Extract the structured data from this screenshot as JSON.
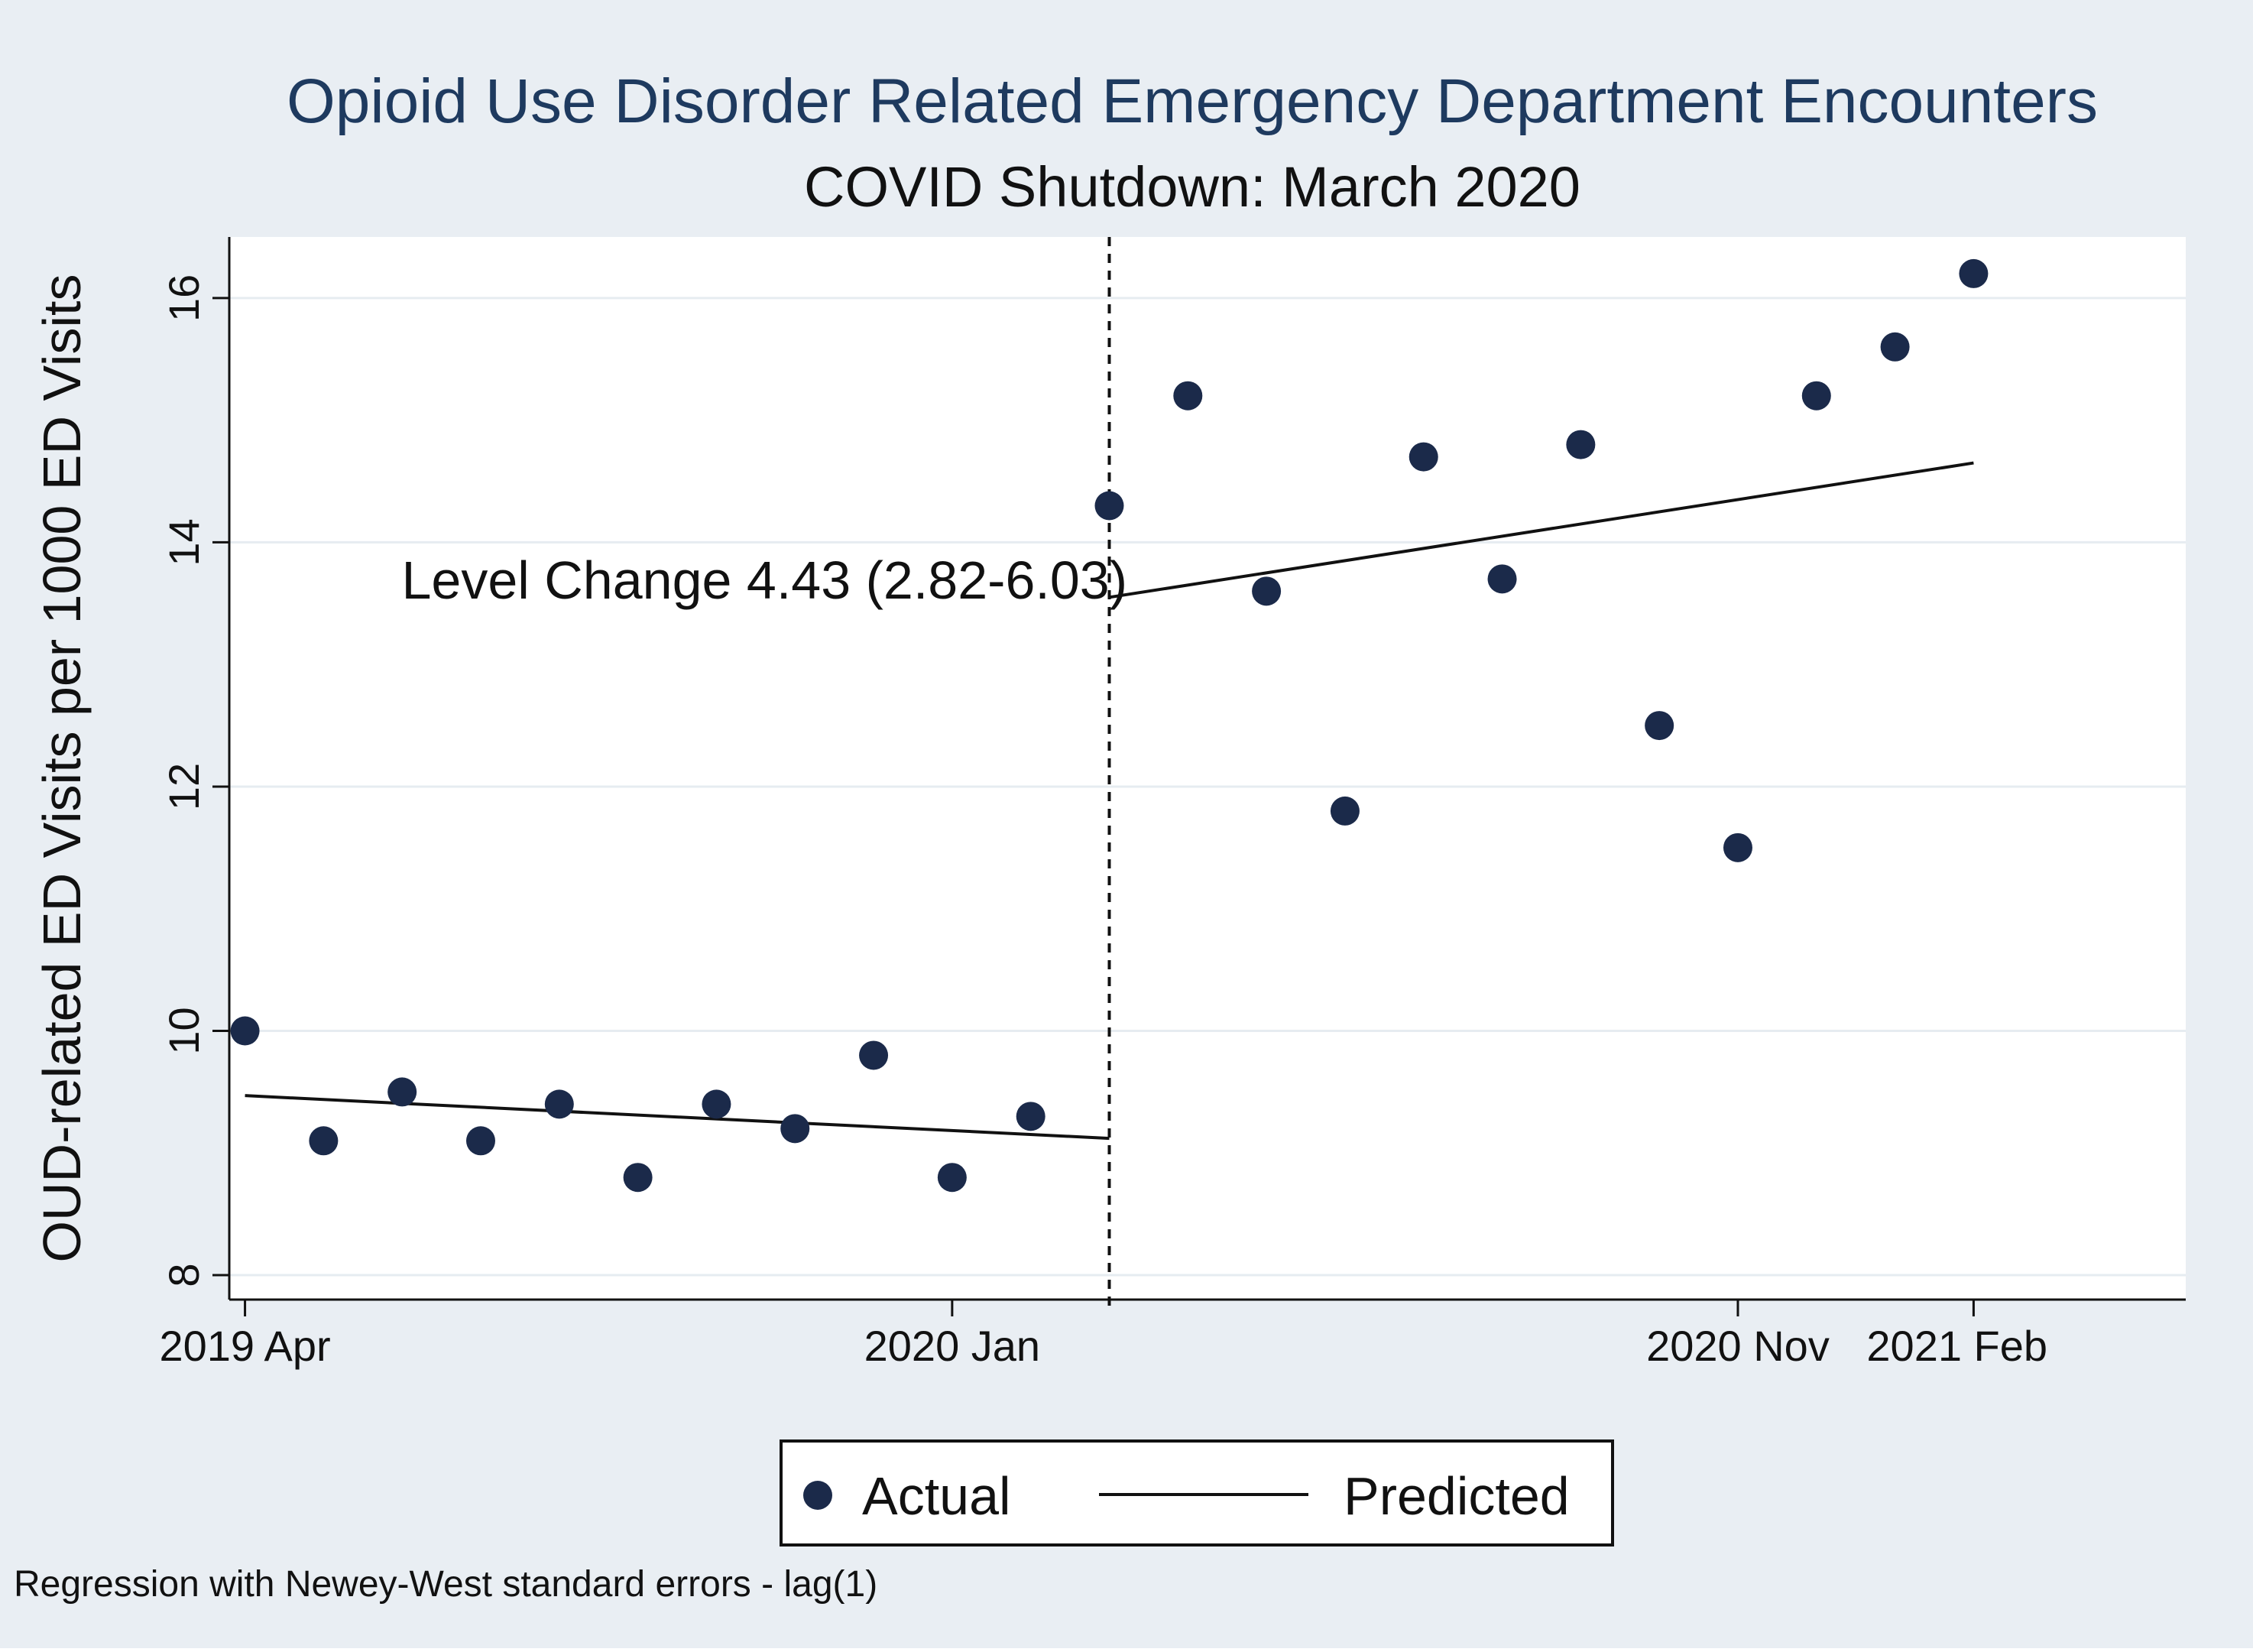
{
  "colors": {
    "outer_background": "#e9eef3",
    "plot_background": "#ffffff",
    "title_color": "#1e3a5f",
    "text_color": "#111111",
    "marker_color": "#1b2a4a",
    "line_color": "#111111",
    "grid_color": "#e6ecf1"
  },
  "chart_data": {
    "type": "scatter",
    "title": "Opioid Use Disorder Related Emergency Department Encounters",
    "subtitle": "COVID Shutdown: March 2020",
    "ylabel": "OUD-related ED Visits per 1000 ED Visits",
    "xlabel": "",
    "x_unit": "months since 2019 Apr",
    "xlim": [
      -0.2,
      24.7
    ],
    "ylim": [
      7.8,
      16.5
    ],
    "y_ticks": [
      8,
      10,
      12,
      14,
      16
    ],
    "x_ticks": [
      {
        "x": 0,
        "label": "2019 Apr"
      },
      {
        "x": 9,
        "label": "2020 Jan"
      },
      {
        "x": 19,
        "label": "2020 Nov"
      },
      {
        "x": 22,
        "label": "2021 Feb"
      }
    ],
    "grid": true,
    "intervention": {
      "x": 11,
      "label": "COVID Shutdown: March 2020"
    },
    "annotation": {
      "text": "Level Change 4.43 (2.82-6.03)",
      "x": 11,
      "y": 13.6
    },
    "series": [
      {
        "name": "Actual",
        "type": "scatter",
        "x": [
          0,
          1,
          2,
          3,
          4,
          5,
          6,
          7,
          8,
          9,
          10,
          11,
          12,
          13,
          14,
          15,
          16,
          17,
          18,
          19,
          20,
          21,
          22
        ],
        "y": [
          10.0,
          9.1,
          9.5,
          9.1,
          9.4,
          8.8,
          9.4,
          9.2,
          9.8,
          8.8,
          9.3,
          14.3,
          15.2,
          13.6,
          11.8,
          14.7,
          13.7,
          14.8,
          12.5,
          11.5,
          15.2,
          15.6,
          16.2
        ]
      },
      {
        "name": "Predicted",
        "type": "line",
        "segments": [
          {
            "x": [
              0,
              11
            ],
            "y": [
              9.47,
              9.12
            ]
          },
          {
            "x": [
              11,
              22
            ],
            "y": [
              13.55,
              14.65
            ]
          }
        ]
      }
    ],
    "legend": {
      "position": "bottom",
      "items": [
        "Actual",
        "Predicted"
      ]
    },
    "note": "Regression with Newey-West standard errors - lag(1)"
  }
}
